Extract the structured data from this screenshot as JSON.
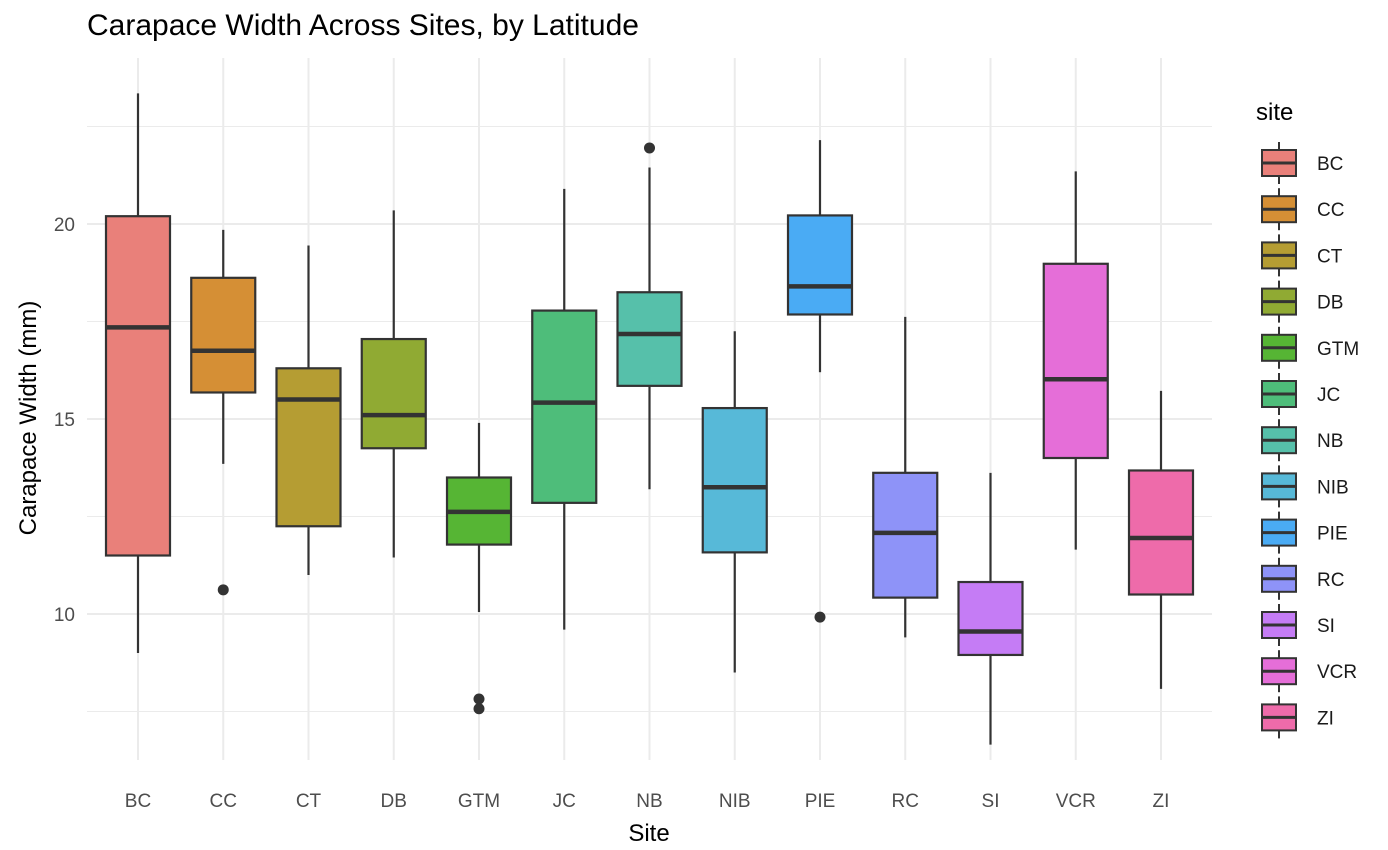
{
  "chart_data": {
    "type": "boxplot",
    "title": "Carapace Width Across Sites, by Latitude",
    "xlabel": "Site",
    "ylabel": "Carapace Width (mm)",
    "ylim": [
      6.5,
      24
    ],
    "yticks": [
      10,
      15,
      20
    ],
    "grid": true,
    "legend_title": "site",
    "legend_position": "right",
    "categories": [
      "BC",
      "CC",
      "CT",
      "DB",
      "GTM",
      "JC",
      "NB",
      "NIB",
      "PIE",
      "RC",
      "SI",
      "VCR",
      "ZI"
    ],
    "boxes": [
      {
        "site": "BC",
        "color": "#E9807A",
        "lower_whisker": 9.0,
        "q1": 11.5,
        "median": 17.35,
        "q3": 20.2,
        "upper_whisker": 23.35,
        "outliers": []
      },
      {
        "site": "CC",
        "color": "#D58F35",
        "lower_whisker": 13.85,
        "q1": 15.68,
        "median": 16.75,
        "q3": 18.62,
        "upper_whisker": 19.85,
        "outliers": [
          10.62
        ]
      },
      {
        "site": "CT",
        "color": "#B59D33",
        "lower_whisker": 11.0,
        "q1": 12.25,
        "median": 15.5,
        "q3": 16.3,
        "upper_whisker": 19.45,
        "outliers": []
      },
      {
        "site": "DB",
        "color": "#90AA33",
        "lower_whisker": 11.45,
        "q1": 14.25,
        "median": 15.1,
        "q3": 17.05,
        "upper_whisker": 20.35,
        "outliers": []
      },
      {
        "site": "GTM",
        "color": "#56B534",
        "lower_whisker": 10.05,
        "q1": 11.78,
        "median": 12.62,
        "q3": 13.5,
        "upper_whisker": 14.9,
        "outliers": [
          7.82,
          7.57
        ]
      },
      {
        "site": "JC",
        "color": "#4EBD7A",
        "lower_whisker": 9.6,
        "q1": 12.85,
        "median": 15.42,
        "q3": 17.78,
        "upper_whisker": 20.9,
        "outliers": []
      },
      {
        "site": "NB",
        "color": "#56C0AA",
        "lower_whisker": 13.2,
        "q1": 15.85,
        "median": 17.18,
        "q3": 18.25,
        "upper_whisker": 21.45,
        "outliers": [
          21.95
        ]
      },
      {
        "site": "NIB",
        "color": "#57B9D8",
        "lower_whisker": 8.5,
        "q1": 11.58,
        "median": 13.25,
        "q3": 15.28,
        "upper_whisker": 17.25,
        "outliers": []
      },
      {
        "site": "PIE",
        "color": "#4AABF4",
        "lower_whisker": 16.2,
        "q1": 17.68,
        "median": 18.4,
        "q3": 20.22,
        "upper_whisker": 22.15,
        "outliers": [
          9.92
        ]
      },
      {
        "site": "RC",
        "color": "#8E93F8",
        "lower_whisker": 9.4,
        "q1": 10.42,
        "median": 12.08,
        "q3": 13.62,
        "upper_whisker": 17.62,
        "outliers": []
      },
      {
        "site": "SI",
        "color": "#C57CF5",
        "lower_whisker": 6.65,
        "q1": 8.95,
        "median": 9.55,
        "q3": 10.82,
        "upper_whisker": 13.62,
        "outliers": []
      },
      {
        "site": "VCR",
        "color": "#E56ED8",
        "lower_whisker": 11.65,
        "q1": 14.0,
        "median": 16.02,
        "q3": 18.98,
        "upper_whisker": 21.35,
        "outliers": []
      },
      {
        "site": "ZI",
        "color": "#EE6BAA",
        "lower_whisker": 8.08,
        "q1": 10.5,
        "median": 11.95,
        "q3": 13.68,
        "upper_whisker": 15.72,
        "outliers": []
      }
    ]
  }
}
